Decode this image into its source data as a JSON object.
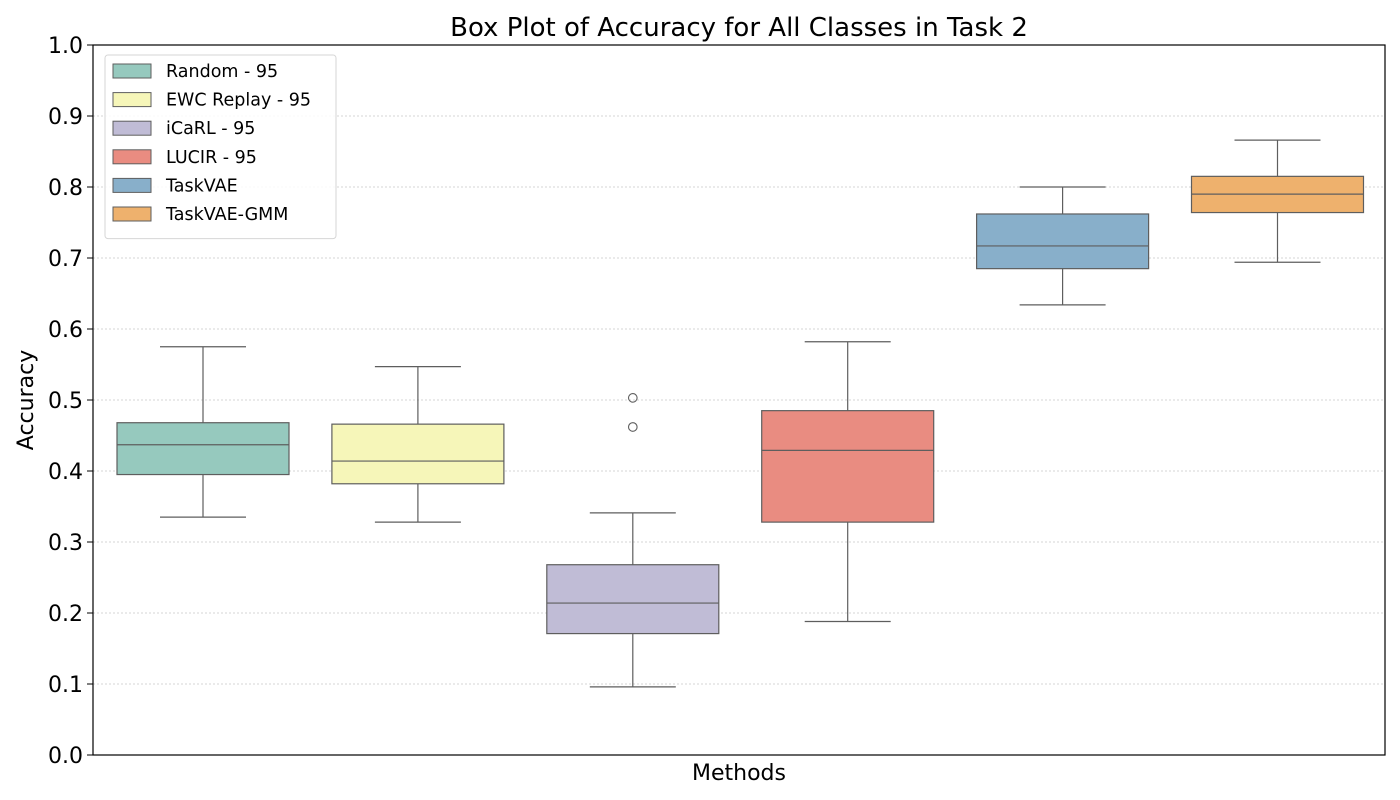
{
  "chart_data": {
    "type": "box",
    "title": "Box Plot of Accuracy for All Classes in Task 2",
    "xlabel": "Methods",
    "ylabel": "Accuracy",
    "ylim": [
      0.0,
      1.0
    ],
    "yticks": [
      "0.0",
      "0.1",
      "0.2",
      "0.3",
      "0.4",
      "0.5",
      "0.6",
      "0.7",
      "0.8",
      "0.9",
      "1.0"
    ],
    "grid": "horizontal-dotted",
    "legend_position": "top-left",
    "series": [
      {
        "name": "Random - 95",
        "color": "#96c9be",
        "whisker_low": 0.335,
        "q1": 0.395,
        "median": 0.437,
        "q3": 0.468,
        "whisker_high": 0.575,
        "outliers": []
      },
      {
        "name": "EWC Replay - 95",
        "color": "#f6f6b9",
        "whisker_low": 0.328,
        "q1": 0.382,
        "median": 0.414,
        "q3": 0.466,
        "whisker_high": 0.547,
        "outliers": []
      },
      {
        "name": "iCaRL - 95",
        "color": "#c0bcd6",
        "whisker_low": 0.096,
        "q1": 0.171,
        "median": 0.214,
        "q3": 0.268,
        "whisker_high": 0.341,
        "outliers": [
          0.462,
          0.503
        ]
      },
      {
        "name": "LUCIR - 95",
        "color": "#e98c81",
        "whisker_low": 0.188,
        "q1": 0.328,
        "median": 0.429,
        "q3": 0.485,
        "whisker_high": 0.582,
        "outliers": []
      },
      {
        "name": "TaskVAE",
        "color": "#88afca",
        "whisker_low": 0.634,
        "q1": 0.685,
        "median": 0.717,
        "q3": 0.762,
        "whisker_high": 0.8,
        "outliers": []
      },
      {
        "name": "TaskVAE-GMM",
        "color": "#eeb16d",
        "whisker_low": 0.694,
        "q1": 0.764,
        "median": 0.79,
        "q3": 0.815,
        "whisker_high": 0.866,
        "outliers": []
      }
    ]
  }
}
